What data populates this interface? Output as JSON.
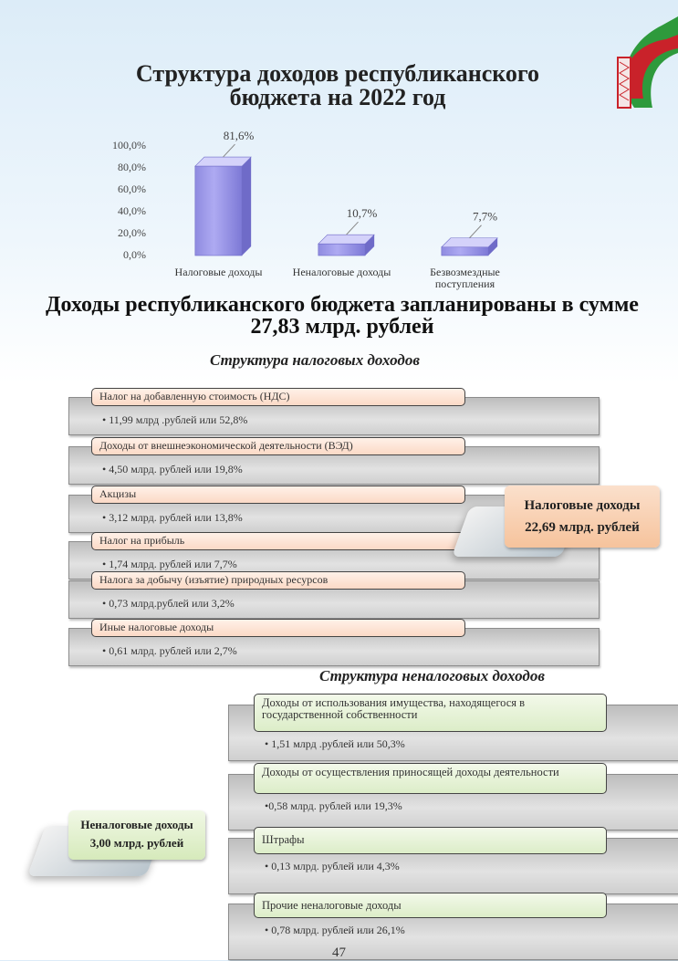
{
  "title": "Структура доходов республиканского бюджета на 2022 год",
  "chart_data": {
    "type": "bar",
    "categories": [
      "Налоговые доходы",
      "Неналоговые доходы",
      "Безвозмездные поступления"
    ],
    "values": [
      81.6,
      10.7,
      7.7
    ],
    "value_labels": [
      "81,6%",
      "10,7%",
      "7,7%"
    ],
    "color": "#aeaaf2",
    "ylim": [
      0,
      100
    ],
    "yticks": [
      {
        "value": 0,
        "label": "0,0%"
      },
      {
        "value": 20,
        "label": "20,0%"
      },
      {
        "value": 40,
        "label": "40,0%"
      },
      {
        "value": 60,
        "label": "60,0%"
      },
      {
        "value": 80,
        "label": "80,0%"
      },
      {
        "value": 100,
        "label": "100,0%"
      }
    ],
    "grid": false
  },
  "heading": "Доходы республиканского бюджета запланированы в сумме 27,83 млрд. рублей",
  "tax_section": {
    "title": "Структура налоговых доходов",
    "items": [
      {
        "name": "Налог на добавленную стоимость (НДС)",
        "detail": "• 11,99 млрд .рублей или 52,8%"
      },
      {
        "name": "Доходы от внешнеэкономической деятельности (ВЭД)",
        "detail": "• 4,50 млрд. рублей или 19,8%"
      },
      {
        "name": "Акцизы",
        "detail": "• 3,12 млрд. рублей или 13,8%"
      },
      {
        "name": "Налог на прибыль",
        "detail": "• 1,74 млрд. рублей или 7,7%"
      },
      {
        "name": "Налога за добычу (изъятие) природных ресурсов",
        "detail": "• 0,73 млрд.рублей или 3,2%"
      },
      {
        "name": "Иные налоговые доходы",
        "detail": "• 0,61 млрд. рублей или 2,7%"
      }
    ],
    "total": {
      "label": "Налоговые доходы",
      "amount": "22,69 млрд. рублей"
    }
  },
  "nontax_section": {
    "title": "Структура неналоговых доходов",
    "items": [
      {
        "name": "Доходы от использования имущества, находящегося в государственной собственности",
        "detail": "• 1,51 млрд .рублей или 50,3%"
      },
      {
        "name": "Доходы от осуществления приносящей доходы деятельности",
        "detail": "•0,58 млрд. рублей или 19,3%"
      },
      {
        "name": "Штрафы",
        "detail": "• 0,13 млрд. рублей или 4,3%"
      },
      {
        "name": "Прочие неналоговые доходы",
        "detail": "• 0,78 млрд. рублей или 26,1%"
      }
    ],
    "total": {
      "label": "Неналоговые доходы",
      "amount": "3,00 млрд. рублей"
    }
  },
  "page_number": "47"
}
